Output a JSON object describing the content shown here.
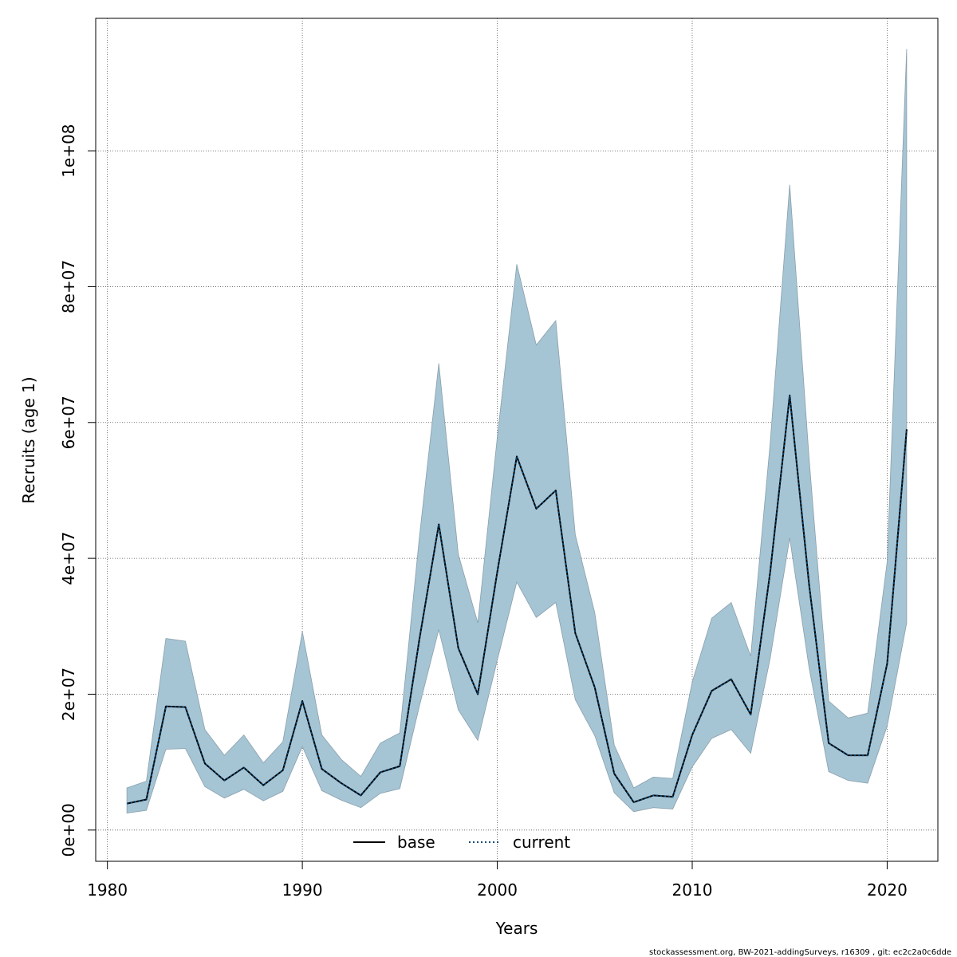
{
  "chart_data": {
    "type": "line",
    "xlabel": "Years",
    "ylabel": "Recruits (age 1)",
    "xlim": [
      1979.4,
      2022.6
    ],
    "ylim": [
      -4600000,
      119500000
    ],
    "x_ticks": [
      1980,
      1990,
      2000,
      2010,
      2020
    ],
    "x_tick_labels": [
      "1980",
      "1990",
      "2000",
      "2010",
      "2020"
    ],
    "y_ticks": [
      0,
      20000000,
      40000000,
      60000000,
      80000000,
      100000000
    ],
    "y_tick_labels": [
      "0e+00",
      "2e+07",
      "4e+07",
      "6e+07",
      "8e+07",
      "1e+08"
    ],
    "grid": true,
    "legend_position": "bottom",
    "x": [
      1981,
      1982,
      1983,
      1984,
      1985,
      1986,
      1987,
      1988,
      1989,
      1990,
      1991,
      1992,
      1993,
      1994,
      1995,
      1996,
      1997,
      1998,
      1999,
      2000,
      2001,
      2002,
      2003,
      2004,
      2005,
      2006,
      2007,
      2008,
      2009,
      2010,
      2011,
      2012,
      2013,
      2014,
      2015,
      2016,
      2017,
      2018,
      2019,
      2020,
      2021
    ],
    "series": [
      {
        "name": "base",
        "style": "solid",
        "color": "#000000",
        "values": [
          3900000,
          4500000,
          18200000,
          18100000,
          9800000,
          7300000,
          9200000,
          6600000,
          8800000,
          19000000,
          9000000,
          6900000,
          5100000,
          8500000,
          9400000,
          28000000,
          45000000,
          26800000,
          20000000,
          38000000,
          55000000,
          47300000,
          50000000,
          29000000,
          21000000,
          8300000,
          4100000,
          5100000,
          4900000,
          14000000,
          20500000,
          22200000,
          17000000,
          38000000,
          64000000,
          36000000,
          12800000,
          11000000,
          11000000,
          24500000,
          59000000
        ]
      },
      {
        "name": "current",
        "style": "dotted",
        "color": "#0a4a7a",
        "values": [
          3900000,
          4500000,
          18200000,
          18100000,
          9800000,
          7300000,
          9200000,
          6600000,
          8800000,
          19000000,
          9000000,
          6900000,
          5100000,
          8500000,
          9400000,
          28000000,
          45000000,
          26800000,
          20000000,
          38000000,
          55000000,
          47300000,
          50000000,
          29000000,
          21000000,
          8300000,
          4100000,
          5100000,
          4900000,
          14000000,
          20500000,
          22200000,
          17000000,
          38000000,
          64000000,
          36000000,
          12800000,
          11000000,
          11000000,
          24500000,
          59000000
        ]
      }
    ],
    "band": {
      "color": "#a5c4d4",
      "edge": "#8aa0ac",
      "lower": [
        2500000,
        2900000,
        11900000,
        12000000,
        6400000,
        4700000,
        6000000,
        4300000,
        5700000,
        12300000,
        5800000,
        4400000,
        3300000,
        5400000,
        6100000,
        18200000,
        29500000,
        17700000,
        13200000,
        25000000,
        36500000,
        31300000,
        33500000,
        19200000,
        13900000,
        5500000,
        2700000,
        3300000,
        3100000,
        9300000,
        13500000,
        14800000,
        11300000,
        25300000,
        43000000,
        23800000,
        8600000,
        7300000,
        6900000,
        15300000,
        30500000
      ],
      "upper": [
        6200000,
        7200000,
        28200000,
        27800000,
        14800000,
        11000000,
        14000000,
        9900000,
        13000000,
        29200000,
        14000000,
        10400000,
        7900000,
        12800000,
        14300000,
        43000000,
        68700000,
        40600000,
        30500000,
        57800000,
        83300000,
        71400000,
        75000000,
        43500000,
        32000000,
        12500000,
        6200000,
        7800000,
        7600000,
        21800000,
        31200000,
        33500000,
        25600000,
        57000000,
        95000000,
        54500000,
        19000000,
        16500000,
        17200000,
        39500000,
        115000000
      ]
    }
  },
  "footer": "stockassessment.org, BW-2021-addingSurveys, r16309 , git: ec2c2a0c6dde"
}
